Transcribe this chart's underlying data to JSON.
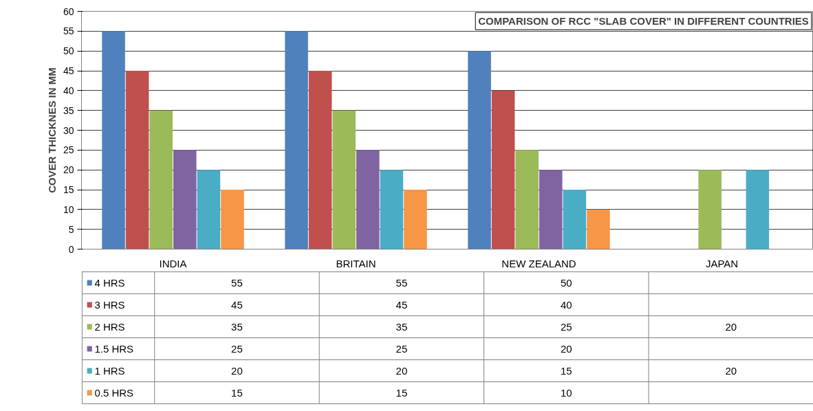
{
  "chart_data": {
    "type": "bar",
    "title": "COMPARISON OF RCC \"SLAB COVER\" IN DIFFERENT COUNTRIES",
    "ylabel": "COVER THICKNES IN MM",
    "categories": [
      "INDIA",
      "BRITAIN",
      "NEW ZEALAND",
      "JAPAN"
    ],
    "series": [
      {
        "name": "4 HRS",
        "color": "#4f81bd",
        "values": [
          55,
          55,
          50,
          null
        ]
      },
      {
        "name": "3 HRS",
        "color": "#c0504d",
        "values": [
          45,
          45,
          40,
          null
        ]
      },
      {
        "name": "2 HRS",
        "color": "#9bbb59",
        "values": [
          35,
          35,
          25,
          20
        ]
      },
      {
        "name": "1.5 HRS",
        "color": "#8064a2",
        "values": [
          25,
          25,
          20,
          null
        ]
      },
      {
        "name": "1 HRS",
        "color": "#4bacc6",
        "values": [
          20,
          20,
          15,
          20
        ]
      },
      {
        "name": "0.5 HRS",
        "color": "#f79646",
        "values": [
          15,
          15,
          10,
          null
        ]
      }
    ],
    "ylim": [
      0,
      60
    ],
    "yticks": [
      0,
      5,
      10,
      15,
      20,
      25,
      30,
      35,
      40,
      45,
      50,
      55,
      60
    ],
    "grid": "y",
    "legend": "bottom left",
    "data_labels": true
  }
}
